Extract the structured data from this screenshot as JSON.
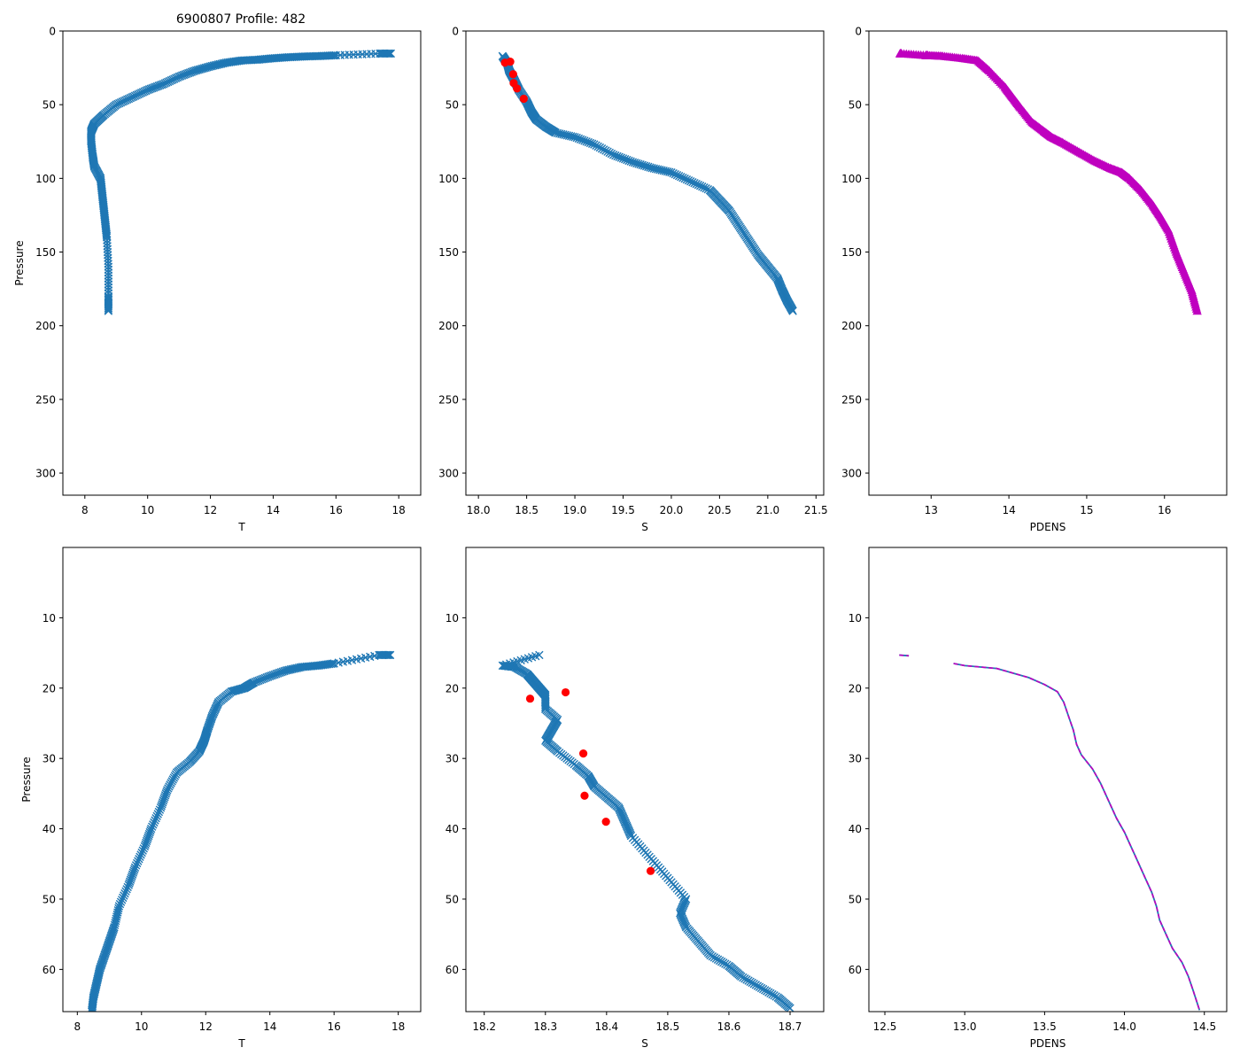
{
  "figure_title": "6900807 Profile: 482",
  "colors": {
    "series": "#1f77b4",
    "flag": "#ff0000",
    "density": "#bf00bf",
    "axis": "#000000"
  },
  "chart_data": [
    {
      "type": "scatter",
      "id": "p0",
      "title": "6900807 Profile: 482",
      "xlabel": "T",
      "ylabel": "Pressure",
      "xlim": [
        7.3,
        18.7
      ],
      "ylim": [
        315,
        0
      ],
      "y_inverted": true,
      "xticks": [
        "8",
        "10",
        "12",
        "14",
        "16",
        "18"
      ],
      "xtick_values": [
        8,
        10,
        12,
        14,
        16,
        18
      ],
      "yticks": [
        "0",
        "50",
        "100",
        "150",
        "200",
        "250",
        "300"
      ],
      "ytick_values": [
        0,
        50,
        100,
        150,
        200,
        250,
        300
      ],
      "series": [
        {
          "name": "T",
          "marker": "x",
          "color": "#1f77b4",
          "x": [
            17.75,
            17.4,
            16.0,
            15.5,
            15.0,
            14.5,
            14.0,
            13.5,
            13.0,
            12.5,
            12.0,
            11.5,
            11.0,
            10.5,
            10.0,
            9.5,
            9.0,
            8.6,
            8.3,
            8.2,
            8.2,
            8.25,
            8.3,
            8.5,
            8.55,
            8.6,
            8.65,
            8.7,
            8.75,
            8.75,
            8.75
          ],
          "y": [
            15.3,
            15.3,
            16.5,
            17.0,
            17.3,
            17.8,
            18.5,
            19.5,
            20.0,
            21.5,
            24.0,
            27.0,
            31.0,
            36.0,
            40.0,
            45.0,
            50.0,
            57.0,
            63.0,
            68.0,
            75.0,
            85.0,
            92.0,
            100.0,
            110.0,
            120.0,
            130.0,
            140.0,
            160.0,
            180.0,
            190.0
          ]
        }
      ]
    },
    {
      "type": "scatter",
      "id": "p1",
      "title": "",
      "xlabel": "S",
      "ylabel": "",
      "xlim": [
        17.87,
        21.58
      ],
      "ylim": [
        315,
        0
      ],
      "y_inverted": true,
      "xticks": [
        "18.0",
        "18.5",
        "19.0",
        "19.5",
        "20.0",
        "20.5",
        "21.0",
        "21.5"
      ],
      "xtick_values": [
        18.0,
        18.5,
        19.0,
        19.5,
        20.0,
        20.5,
        21.0,
        21.5
      ],
      "yticks": [
        "0",
        "50",
        "100",
        "150",
        "200",
        "250",
        "300"
      ],
      "ytick_values": [
        0,
        50,
        100,
        150,
        200,
        250,
        300
      ],
      "series": [
        {
          "name": "S",
          "marker": "x",
          "color": "#1f77b4",
          "x": [
            18.25,
            18.3,
            18.32,
            18.37,
            18.42,
            18.5,
            18.55,
            18.6,
            18.7,
            18.8,
            19.0,
            19.2,
            19.4,
            19.6,
            19.8,
            20.0,
            20.2,
            20.4,
            20.5,
            20.6,
            20.7,
            20.8,
            20.9,
            21.0,
            21.1,
            21.15,
            21.2,
            21.26
          ],
          "y": [
            17.0,
            22.0,
            27.0,
            33.0,
            40.0,
            48.0,
            55.0,
            60.0,
            65.0,
            69.0,
            72.0,
            77.0,
            84.0,
            89.0,
            93.0,
            96.0,
            102.0,
            108.0,
            115.0,
            122.0,
            132.0,
            142.0,
            152.0,
            160.0,
            168.0,
            176.0,
            183.0,
            190.0
          ]
        },
        {
          "name": "flagged",
          "marker": "o",
          "color": "#ff0000",
          "x": [
            18.275,
            18.33,
            18.36,
            18.365,
            18.4,
            18.47
          ],
          "y": [
            21.5,
            20.8,
            29.3,
            35.3,
            39.0,
            46.0
          ]
        }
      ]
    },
    {
      "type": "scatter",
      "id": "p2",
      "title": "",
      "xlabel": "PDENS",
      "ylabel": "",
      "xlim": [
        12.2,
        16.8
      ],
      "ylim": [
        315,
        0
      ],
      "y_inverted": true,
      "xticks": [
        "13",
        "14",
        "15",
        "16"
      ],
      "xtick_values": [
        13,
        14,
        15,
        16
      ],
      "yticks": [
        "0",
        "50",
        "100",
        "150",
        "200",
        "250",
        "300"
      ],
      "ytick_values": [
        0,
        50,
        100,
        150,
        200,
        250,
        300
      ],
      "series": [
        {
          "name": "PDENS",
          "marker": "^",
          "color": "#bf00bf",
          "x": [
            12.6,
            12.62,
            12.93,
            12.96,
            13.15,
            13.4,
            13.6,
            13.75,
            13.95,
            14.05,
            14.15,
            14.3,
            14.45,
            14.55,
            14.7,
            14.9,
            15.1,
            15.3,
            15.45,
            15.55,
            15.7,
            15.85,
            15.95,
            16.05,
            16.15,
            16.25,
            16.35,
            16.42
          ],
          "y": [
            15.3,
            15.3,
            16.5,
            16.6,
            17.0,
            18.5,
            20.0,
            27.0,
            38.0,
            45.0,
            52.0,
            62.0,
            68.0,
            72.0,
            76.0,
            82.0,
            88.0,
            93.0,
            96.0,
            100.0,
            108.0,
            118.0,
            126.0,
            135.0,
            150.0,
            163.0,
            176.0,
            190.0
          ]
        }
      ]
    },
    {
      "type": "scatter",
      "id": "p3",
      "title": "",
      "xlabel": "T",
      "ylabel": "Pressure",
      "xlim": [
        7.55,
        18.7
      ],
      "ylim": [
        66,
        0
      ],
      "y_inverted": true,
      "xticks": [
        "8",
        "10",
        "12",
        "14",
        "16",
        "18"
      ],
      "xtick_values": [
        8,
        10,
        12,
        14,
        16,
        18
      ],
      "yticks": [
        "10",
        "20",
        "30",
        "40",
        "50",
        "60"
      ],
      "ytick_values": [
        10,
        20,
        30,
        40,
        50,
        60
      ],
      "series": [
        {
          "name": "T",
          "marker": "x",
          "color": "#1f77b4",
          "x": [
            17.75,
            17.4,
            16.0,
            15.5,
            15.0,
            14.5,
            14.0,
            13.5,
            13.2,
            12.8,
            12.4,
            12.2,
            12.05,
            11.95,
            11.8,
            11.5,
            11.1,
            10.8,
            10.6,
            10.3,
            10.1,
            9.8,
            9.6,
            9.3,
            9.15,
            9.0,
            8.85,
            8.7,
            8.6,
            8.5,
            8.45
          ],
          "y": [
            15.3,
            15.3,
            16.5,
            16.8,
            17.0,
            17.5,
            18.3,
            19.2,
            20.0,
            20.5,
            22.0,
            24.0,
            26.0,
            27.5,
            29.0,
            30.5,
            32.0,
            34.5,
            37.0,
            40.0,
            42.5,
            45.5,
            48.0,
            51.0,
            54.0,
            56.0,
            58.0,
            60.0,
            62.0,
            64.0,
            66.0
          ]
        }
      ]
    },
    {
      "type": "scatter",
      "id": "p4",
      "title": "",
      "xlabel": "S",
      "ylabel": "",
      "xlim": [
        18.17,
        18.755
      ],
      "ylim": [
        66,
        0
      ],
      "y_inverted": true,
      "xticks": [
        "18.2",
        "18.3",
        "18.4",
        "18.5",
        "18.6",
        "18.7"
      ],
      "xtick_values": [
        18.2,
        18.3,
        18.4,
        18.5,
        18.6,
        18.7
      ],
      "yticks": [
        "10",
        "20",
        "30",
        "40",
        "50",
        "60"
      ],
      "ytick_values": [
        10,
        20,
        30,
        40,
        50,
        60
      ],
      "series": [
        {
          "name": "S",
          "marker": "x",
          "color": "#1f77b4",
          "x": [
            18.29,
            18.23,
            18.25,
            18.27,
            18.28,
            18.29,
            18.3,
            18.3,
            18.32,
            18.31,
            18.3,
            18.32,
            18.35,
            18.37,
            18.38,
            18.4,
            18.42,
            18.43,
            18.44,
            18.47,
            18.5,
            18.53,
            18.52,
            18.53,
            18.55,
            18.57,
            18.6,
            18.62,
            18.65,
            18.68,
            18.7
          ],
          "y": [
            15.3,
            16.8,
            17.0,
            18.0,
            19.0,
            20.0,
            21.0,
            23.0,
            24.5,
            26.0,
            27.5,
            29.0,
            31.0,
            32.5,
            34.0,
            35.5,
            37.0,
            39.0,
            41.0,
            44.0,
            47.0,
            50.0,
            52.0,
            54.0,
            56.0,
            58.0,
            59.5,
            61.0,
            62.5,
            64.0,
            65.5
          ]
        },
        {
          "name": "flagged",
          "marker": "o",
          "color": "#ff0000",
          "x": [
            18.275,
            18.333,
            18.362,
            18.364,
            18.399,
            18.472
          ],
          "y": [
            21.5,
            20.6,
            29.3,
            35.3,
            39.0,
            46.0
          ]
        }
      ]
    },
    {
      "type": "line",
      "id": "p5",
      "title": "",
      "xlabel": "PDENS",
      "ylabel": "",
      "xlim": [
        12.4,
        14.64
      ],
      "ylim": [
        66,
        0
      ],
      "y_inverted": true,
      "xticks": [
        "12.5",
        "13.0",
        "13.5",
        "14.0",
        "14.5"
      ],
      "xtick_values": [
        12.5,
        13.0,
        13.5,
        14.0,
        14.5
      ],
      "yticks": [
        "10",
        "20",
        "30",
        "40",
        "50",
        "60"
      ],
      "ytick_values": [
        10,
        20,
        30,
        40,
        50,
        60
      ],
      "series": [
        {
          "name": "PDENS",
          "marker": "none",
          "color": "#bf00bf",
          "x": [
            12.59,
            12.65,
            null,
            12.93,
            13.0,
            13.2,
            13.4,
            13.5,
            13.58,
            13.62,
            13.65,
            13.68,
            13.7,
            13.73,
            13.8,
            13.85,
            13.9,
            13.95,
            14.0,
            14.03,
            14.07,
            14.1,
            14.13,
            14.17,
            14.2,
            14.22,
            14.26,
            14.3,
            14.36,
            14.4,
            14.43,
            14.47
          ],
          "y": [
            15.3,
            15.4,
            null,
            16.5,
            16.8,
            17.2,
            18.5,
            19.5,
            20.5,
            22.0,
            24.0,
            26.0,
            28.0,
            29.5,
            31.5,
            33.5,
            36.0,
            38.5,
            40.5,
            42.0,
            44.0,
            45.5,
            47.0,
            49.0,
            51.0,
            53.0,
            55.0,
            57.0,
            59.0,
            61.0,
            63.0,
            65.8
          ]
        }
      ]
    }
  ]
}
